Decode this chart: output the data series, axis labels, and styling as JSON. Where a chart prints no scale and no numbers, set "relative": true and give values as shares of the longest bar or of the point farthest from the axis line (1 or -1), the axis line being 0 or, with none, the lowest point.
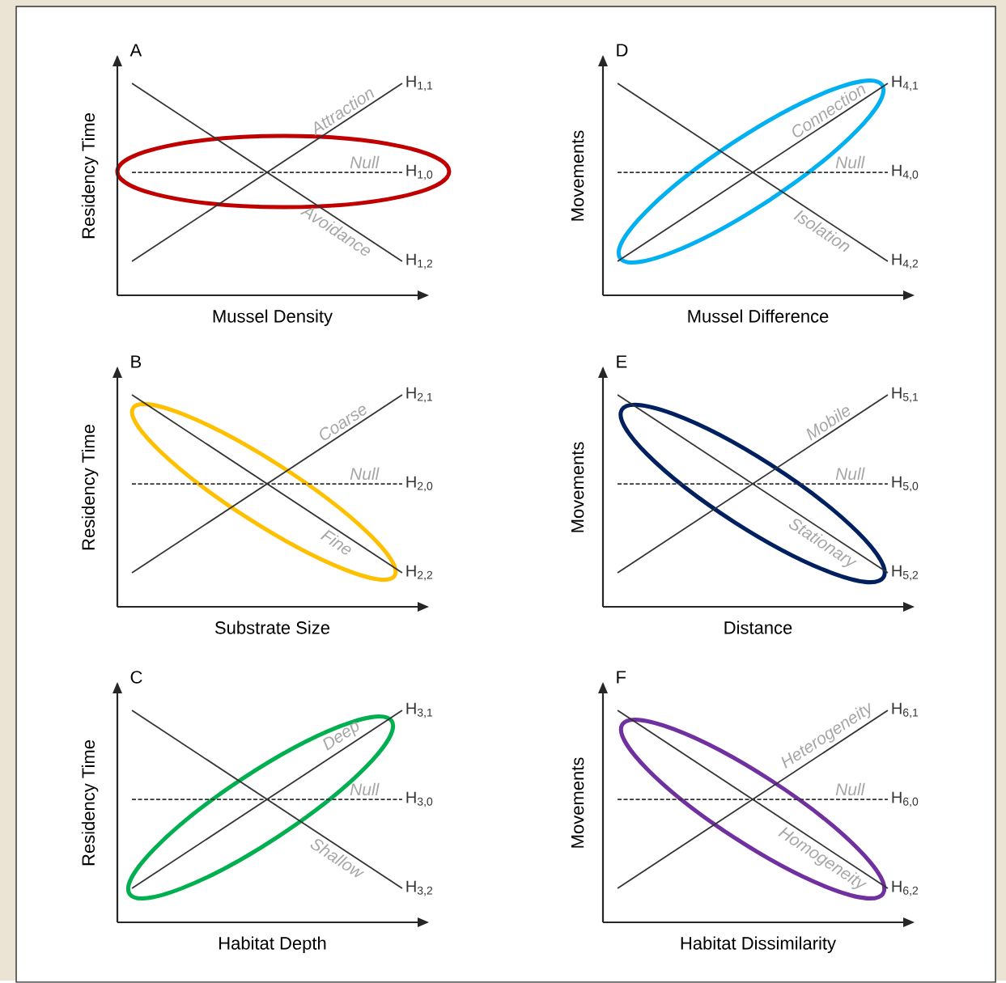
{
  "chart_data": [
    {
      "type": "line",
      "title": "A",
      "xlabel": "Mussel Density",
      "ylabel": "Residency Time",
      "relative": true,
      "tick_labels": false,
      "line_style": "solid",
      "categories": [
        null,
        null
      ],
      "annotations": [
        "Attraction",
        "Null",
        "Avoidance"
      ],
      "series": [
        {
          "name": "H$_{1,1}$",
          "color": "#333333",
          "values": [
            0.16,
            1
          ]
        },
        {
          "name": "H$_{1,0}$",
          "color": "#333333",
          "values": [
            0.58,
            0.58
          ],
          "line_style": "dashed"
        },
        {
          "name": "H$_{1,2}$",
          "color": "#333333",
          "values": [
            1,
            0.16
          ]
        }
      ]
    },
    {
      "type": "line",
      "title": "D",
      "xlabel": "Mussel Difference",
      "ylabel": "Movements",
      "relative": true,
      "tick_labels": false,
      "line_style": "solid",
      "categories": [
        null,
        null
      ],
      "annotations": [
        "Connection",
        "Null",
        "Isolation"
      ],
      "series": [
        {
          "name": "H$_{4,1}$",
          "color": "#333333",
          "values": [
            0.16,
            1
          ]
        },
        {
          "name": "H$_{4,0}$",
          "color": "#333333",
          "values": [
            0.58,
            0.58
          ],
          "line_style": "dashed"
        },
        {
          "name": "H$_{4,2}$",
          "color": "#333333",
          "values": [
            1,
            0.16
          ]
        }
      ]
    },
    {
      "type": "line",
      "title": "B",
      "xlabel": "Substrate Size",
      "ylabel": "Residency Time",
      "relative": true,
      "tick_labels": false,
      "line_style": "solid",
      "categories": [
        null,
        null
      ],
      "annotations": [
        "Coarse",
        "Null",
        "Fine"
      ],
      "series": [
        {
          "name": "H$_{2,1}$",
          "color": "#333333",
          "values": [
            0.16,
            1
          ]
        },
        {
          "name": "H$_{2,0}$",
          "color": "#333333",
          "values": [
            0.58,
            0.58
          ],
          "line_style": "dashed"
        },
        {
          "name": "H$_{2,2}$",
          "color": "#333333",
          "values": [
            1,
            0.16
          ]
        }
      ]
    },
    {
      "type": "line",
      "title": "E",
      "xlabel": "Distance",
      "ylabel": "Movements",
      "relative": true,
      "tick_labels": false,
      "line_style": "solid",
      "categories": [
        null,
        null
      ],
      "annotations": [
        "Mobile",
        "Null",
        "Stationary"
      ],
      "series": [
        {
          "name": "H$_{5,1}$",
          "color": "#333333",
          "values": [
            0.16,
            1
          ]
        },
        {
          "name": "H$_{5,0}$",
          "color": "#333333",
          "values": [
            0.58,
            0.58
          ],
          "line_style": "dashed"
        },
        {
          "name": "H$_{5,2}$",
          "color": "#333333",
          "values": [
            1,
            0.16
          ]
        }
      ]
    },
    {
      "type": "line",
      "title": "C",
      "xlabel": "Habitat Depth",
      "ylabel": "Residency Time",
      "relative": true,
      "tick_labels": false,
      "line_style": "solid",
      "categories": [
        null,
        null
      ],
      "annotations": [
        "Deep",
        "Null",
        "Shallow"
      ],
      "series": [
        {
          "name": "H$_{3,1}$",
          "color": "#333333",
          "values": [
            0.16,
            1
          ]
        },
        {
          "name": "H$_{3,0}$",
          "color": "#333333",
          "values": [
            0.58,
            0.58
          ],
          "line_style": "dashed"
        },
        {
          "name": "H$_{3,2}$",
          "color": "#333333",
          "values": [
            1,
            0.16
          ]
        }
      ]
    },
    {
      "type": "line",
      "title": "F",
      "xlabel": "Habitat Dissimilarity",
      "ylabel": "Movements",
      "relative": true,
      "tick_labels": false,
      "line_style": "solid",
      "categories": [
        null,
        null
      ],
      "annotations": [
        "Heterogeneity",
        "Null",
        "Homogeneity"
      ],
      "series": [
        {
          "name": "H$_{6,1}$",
          "color": "#333333",
          "values": [
            0.16,
            1
          ]
        },
        {
          "name": "H$_{6,0}$",
          "color": "#333333",
          "values": [
            0.58,
            0.58
          ],
          "line_style": "dashed"
        },
        {
          "name": "H$_{6,2}$",
          "color": "#333333",
          "values": [
            1,
            0.16
          ]
        }
      ]
    }
  ]
}
